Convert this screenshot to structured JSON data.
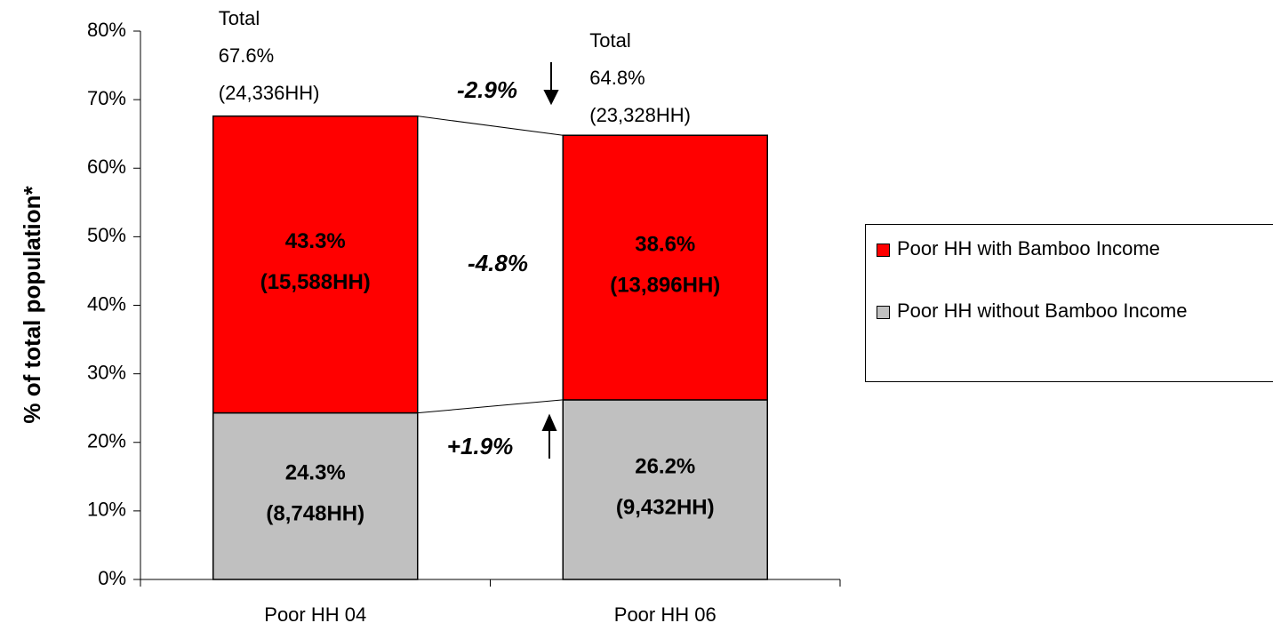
{
  "chart_data": {
    "type": "stacked_bar",
    "y_label": "% of total population*",
    "categories": [
      "Poor HH 04",
      "Poor HH 06"
    ],
    "series": [
      {
        "name": "Poor HH with Bamboo Income",
        "color": "#ff0000",
        "values": [
          43.3,
          38.6
        ],
        "value_labels": [
          "43.3%",
          "38.6%"
        ],
        "household_labels": [
          "(15,588HH)",
          "(13,896HH)"
        ]
      },
      {
        "name": "Poor HH without Bamboo Income",
        "color": "#c0c0c0",
        "values": [
          24.3,
          26.2
        ],
        "value_labels": [
          "24.3%",
          "26.2%"
        ],
        "household_labels": [
          "(8,748HH)",
          "(9,432HH)"
        ]
      }
    ],
    "totals": {
      "label": "Total",
      "values": [
        67.6,
        64.8
      ],
      "value_labels": [
        "67.6%",
        "64.8%"
      ],
      "household_labels": [
        "(24,336HH)",
        "(23,328HH)"
      ]
    },
    "annotations": [
      "-2.9%",
      "-4.8%",
      "+1.9%"
    ],
    "ylim": [
      0,
      80
    ],
    "yticks": [
      {
        "value": 0,
        "label": "0%"
      },
      {
        "value": 10,
        "label": "10%"
      },
      {
        "value": 20,
        "label": "20%"
      },
      {
        "value": 30,
        "label": "30%"
      },
      {
        "value": 40,
        "label": "40%"
      },
      {
        "value": 50,
        "label": "50%"
      },
      {
        "value": 60,
        "label": "60%"
      },
      {
        "value": 70,
        "label": "70%"
      },
      {
        "value": 80,
        "label": "80%"
      }
    ],
    "legend": "right"
  }
}
